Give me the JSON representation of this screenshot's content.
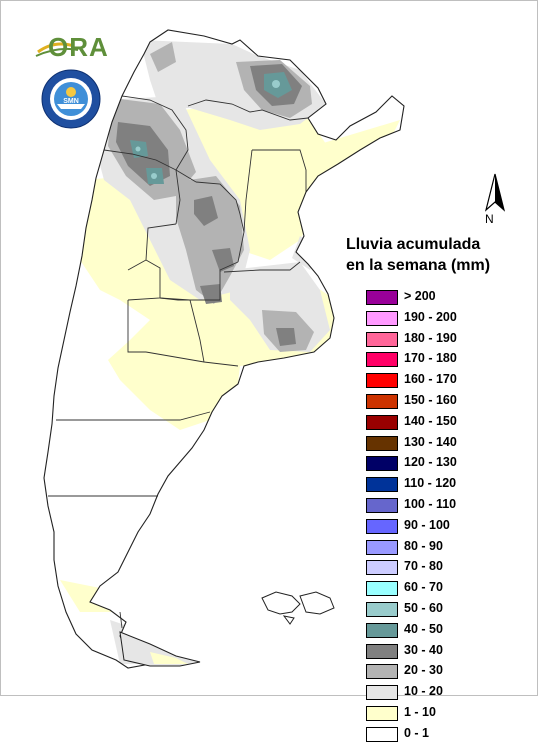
{
  "logos": {
    "ora": {
      "text": "ORA",
      "icon": "ora-sun-logo-icon"
    },
    "smn": {
      "text": "SERVICIO METEOROLOGICO NACIONAL · ARGENTINA",
      "short": "SMN",
      "icon": "smn-seal-icon"
    }
  },
  "north_arrow": {
    "label": "N",
    "icon": "north-arrow-icon"
  },
  "legend": {
    "title_line1": "Lluvia acumulada",
    "title_line2": "en la semana (mm)",
    "items": [
      {
        "label": "> 200",
        "color": "#990099"
      },
      {
        "label": "190 - 200",
        "color": "#ff99ff"
      },
      {
        "label": "180 - 190",
        "color": "#ff6699"
      },
      {
        "label": "170 - 180",
        "color": "#ff0066"
      },
      {
        "label": "160 - 170",
        "color": "#ff0000"
      },
      {
        "label": "150 - 160",
        "color": "#cc3300"
      },
      {
        "label": "140 - 150",
        "color": "#990000"
      },
      {
        "label": "130 - 140",
        "color": "#663300"
      },
      {
        "label": "120 - 130",
        "color": "#000066"
      },
      {
        "label": "110 - 120",
        "color": "#003399"
      },
      {
        "label": "100 - 110",
        "color": "#6666cc"
      },
      {
        "label": "90 - 100",
        "color": "#6666ff"
      },
      {
        "label": "80 - 90",
        "color": "#9999ff"
      },
      {
        "label": "70 - 80",
        "color": "#ccccff"
      },
      {
        "label": "60 - 70",
        "color": "#99ffff"
      },
      {
        "label": "50 - 60",
        "color": "#99cccc"
      },
      {
        "label": "40 - 50",
        "color": "#669999"
      },
      {
        "label": "30 - 40",
        "color": "#808080"
      },
      {
        "label": "20 - 30",
        "color": "#b3b3b3"
      },
      {
        "label": "10 - 20",
        "color": "#e6e6e6"
      },
      {
        "label": "1 - 10",
        "color": "#ffffcc"
      },
      {
        "label": "0 - 1",
        "color": "#ffffff"
      }
    ]
  }
}
